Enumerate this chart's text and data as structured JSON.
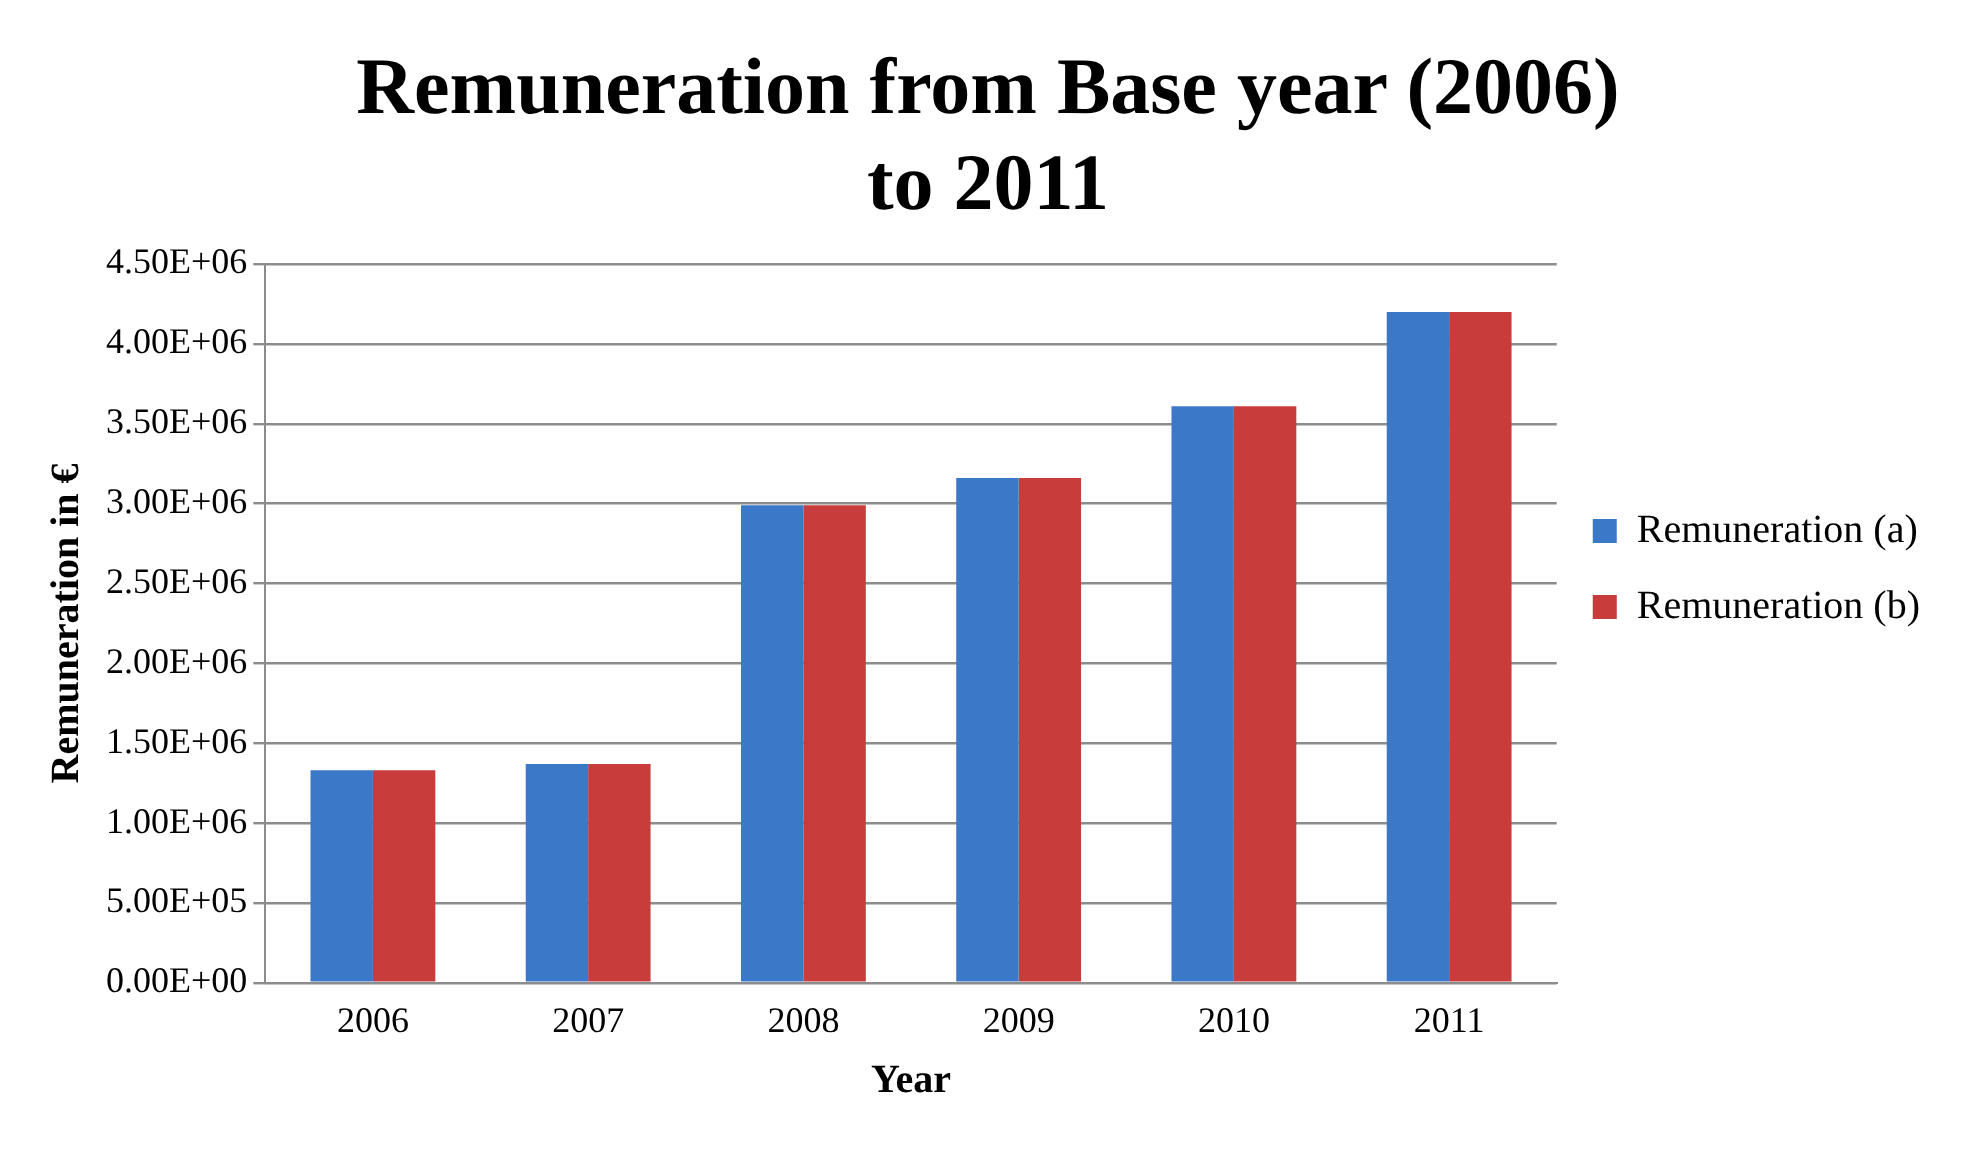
{
  "chart_data": {
    "type": "bar",
    "title": "Remuneration from Base year (2006) to 2011",
    "xlabel": "Year",
    "ylabel": "Remuneration in €",
    "categories": [
      "2006",
      "2007",
      "2008",
      "2009",
      "2010",
      "2011"
    ],
    "series": [
      {
        "name": "Remuneration (a)",
        "color": "#3c78c8",
        "values": [
          1330000,
          1370000,
          2990000,
          3160000,
          3610000,
          4200000
        ]
      },
      {
        "name": "Remuneration (b)",
        "color": "#c83c3c",
        "values": [
          1330000,
          1370000,
          2990000,
          3160000,
          3610000,
          4200000
        ]
      }
    ],
    "ylim": [
      0,
      4500000
    ],
    "yticks": [
      {
        "value": 0,
        "label": "0.00E+00"
      },
      {
        "value": 500000,
        "label": "5.00E+05"
      },
      {
        "value": 1000000,
        "label": "1.00E+06"
      },
      {
        "value": 1500000,
        "label": "1.50E+06"
      },
      {
        "value": 2000000,
        "label": "2.00E+06"
      },
      {
        "value": 2500000,
        "label": "2.50E+06"
      },
      {
        "value": 3000000,
        "label": "3.00E+06"
      },
      {
        "value": 3500000,
        "label": "3.50E+06"
      },
      {
        "value": 4000000,
        "label": "4.00E+06"
      },
      {
        "value": 4500000,
        "label": "4.50E+06"
      }
    ],
    "grid": "y",
    "legend": "right"
  }
}
